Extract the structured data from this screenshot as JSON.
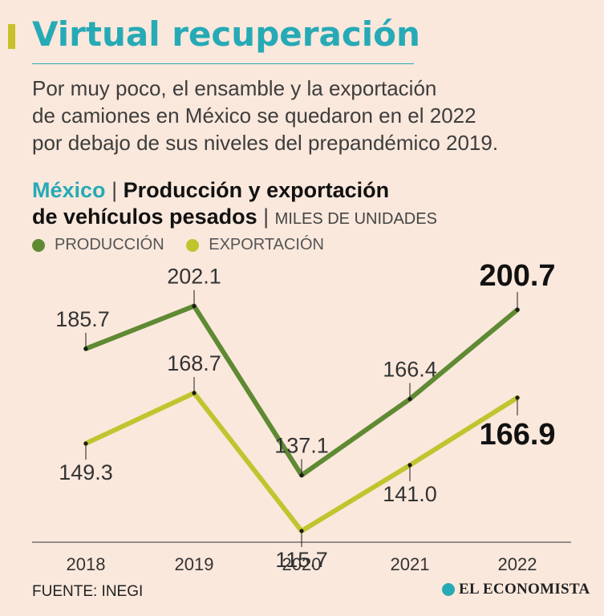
{
  "header": {
    "title": "Virtual recuperación",
    "subtitle_lines": [
      "Por muy poco, el ensamble y la exportación",
      "de camiones en México se quedaron en el 2022",
      "por debajo de sus niveles del prepandémico 2019."
    ]
  },
  "chart_heading": {
    "country": "México",
    "separator": "|",
    "title_line1": "Producción y exportación",
    "title_line2": "de vehículos pesados",
    "units": "MILES DE UNIDADES"
  },
  "legend": [
    {
      "label": "PRODUCCIÓN",
      "color": "#5f8a33"
    },
    {
      "label": "EXPORTACIÓN",
      "color": "#c0c52f"
    }
  ],
  "chart_data": {
    "type": "line",
    "title": "Producción y exportación de vehículos pesados",
    "ylabel": "Miles de unidades",
    "xlabel": "",
    "categories": [
      "2018",
      "2019",
      "2020",
      "2021",
      "2022"
    ],
    "ylim": [
      100,
      210
    ],
    "grid": false,
    "series": [
      {
        "name": "PRODUCCIÓN",
        "color": "#5f8a33",
        "values": [
          185.7,
          202.1,
          137.1,
          166.4,
          200.7
        ],
        "labels": [
          "185.7",
          "202.1",
          "137.1",
          "166.4",
          "200.7"
        ]
      },
      {
        "name": "EXPORTACIÓN",
        "color": "#c0c52f",
        "values": [
          149.3,
          168.7,
          115.7,
          141.0,
          166.9
        ],
        "labels": [
          "149.3",
          "168.7",
          "115.7",
          "141.0",
          "166.9"
        ]
      }
    ]
  },
  "footer": {
    "source": "FUENTE: INEGI",
    "brand": "EL ECONOMISTA",
    "brand_color": "#26aab6"
  }
}
